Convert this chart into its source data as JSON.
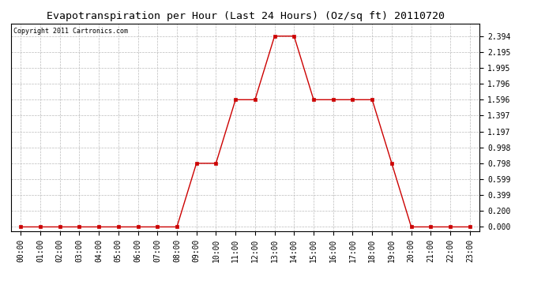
{
  "title": "Evapotranspiration per Hour (Last 24 Hours) (Oz/sq ft) 20110720",
  "copyright": "Copyright 2011 Cartronics.com",
  "hours": [
    "00:00",
    "01:00",
    "02:00",
    "03:00",
    "04:00",
    "05:00",
    "06:00",
    "07:00",
    "08:00",
    "09:00",
    "10:00",
    "11:00",
    "12:00",
    "13:00",
    "14:00",
    "15:00",
    "16:00",
    "17:00",
    "18:00",
    "19:00",
    "20:00",
    "21:00",
    "22:00",
    "23:00"
  ],
  "values": [
    0.0,
    0.0,
    0.0,
    0.0,
    0.0,
    0.0,
    0.0,
    0.0,
    0.0,
    0.798,
    0.798,
    1.596,
    1.596,
    2.394,
    2.394,
    1.596,
    1.596,
    1.596,
    1.596,
    0.798,
    0.0,
    0.0,
    0.0,
    0.0
  ],
  "yticks": [
    0.0,
    0.2,
    0.399,
    0.599,
    0.798,
    0.998,
    1.197,
    1.397,
    1.596,
    1.796,
    1.995,
    2.195,
    2.394
  ],
  "ytick_labels": [
    "0.000",
    "0.200",
    "0.399",
    "0.599",
    "0.798",
    "0.998",
    "1.197",
    "1.397",
    "1.596",
    "1.796",
    "1.995",
    "2.195",
    "2.394"
  ],
  "line_color": "#cc0000",
  "marker": "s",
  "marker_size": 2.5,
  "marker_color": "#cc0000",
  "bg_color": "#ffffff",
  "grid_color": "#bbbbbb",
  "title_fontsize": 9.5,
  "copyright_fontsize": 6,
  "tick_fontsize": 7,
  "ylim_min": -0.05,
  "ylim_max": 2.55
}
